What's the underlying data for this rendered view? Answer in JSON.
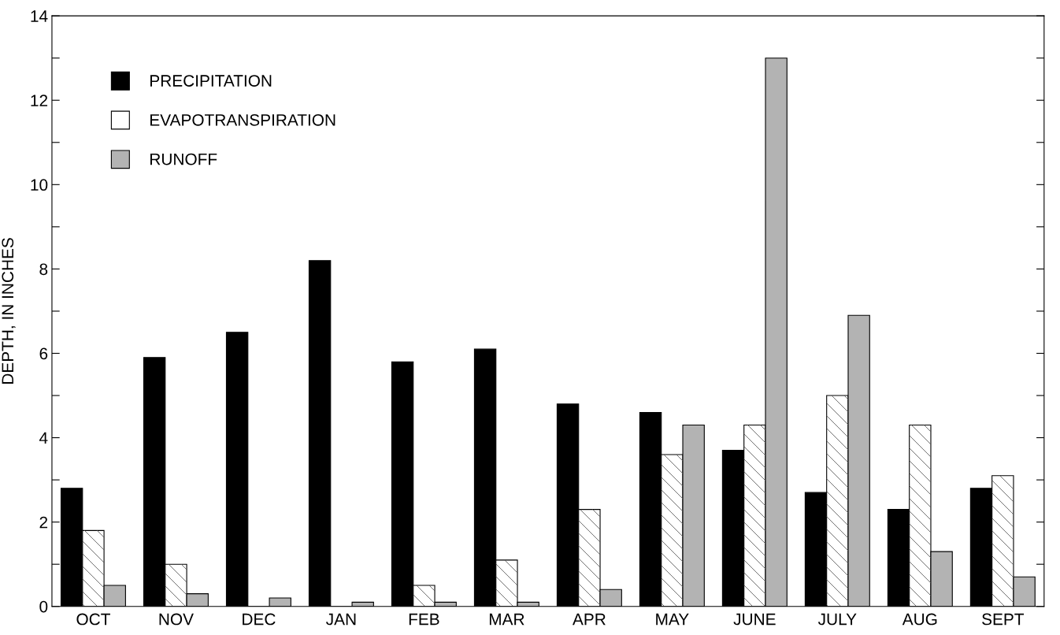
{
  "chart_data": {
    "type": "bar",
    "ylabel": "DEPTH, IN INCHES",
    "categories": [
      "OCT",
      "NOV",
      "DEC",
      "JAN",
      "FEB",
      "MAR",
      "APR",
      "MAY",
      "JUNE",
      "JULY",
      "AUG",
      "SEPT"
    ],
    "series": [
      {
        "name": "PRECIPITATION",
        "color": "#000000",
        "values": [
          2.8,
          5.9,
          6.5,
          8.2,
          5.8,
          6.1,
          4.8,
          4.6,
          3.7,
          2.7,
          2.3,
          2.8
        ]
      },
      {
        "name": "EVAPOTRANSPIRATION",
        "color": "#ffffff",
        "values": [
          1.8,
          1.0,
          0,
          0,
          0.5,
          1.1,
          2.3,
          3.6,
          4.3,
          5.0,
          4.3,
          3.1
        ]
      },
      {
        "name": "RUNOFF",
        "color": "#b3b3b3",
        "values": [
          0.5,
          0.3,
          0.2,
          0.1,
          0.1,
          0.1,
          0.4,
          4.3,
          13.0,
          6.9,
          1.3,
          0.7
        ]
      }
    ],
    "ylim": [
      0,
      14
    ],
    "yticks": [
      0,
      {
        "value": 1,
        "label": null
      },
      2,
      {
        "value": 3,
        "label": null
      },
      4,
      {
        "value": 5,
        "label": null
      },
      6,
      {
        "value": 7,
        "label": null
      },
      8,
      {
        "value": 9,
        "label": null
      },
      10,
      {
        "value": 11,
        "label": null
      },
      12,
      {
        "value": 13,
        "label": null
      },
      14
    ],
    "grid": false,
    "legend": "top left"
  }
}
